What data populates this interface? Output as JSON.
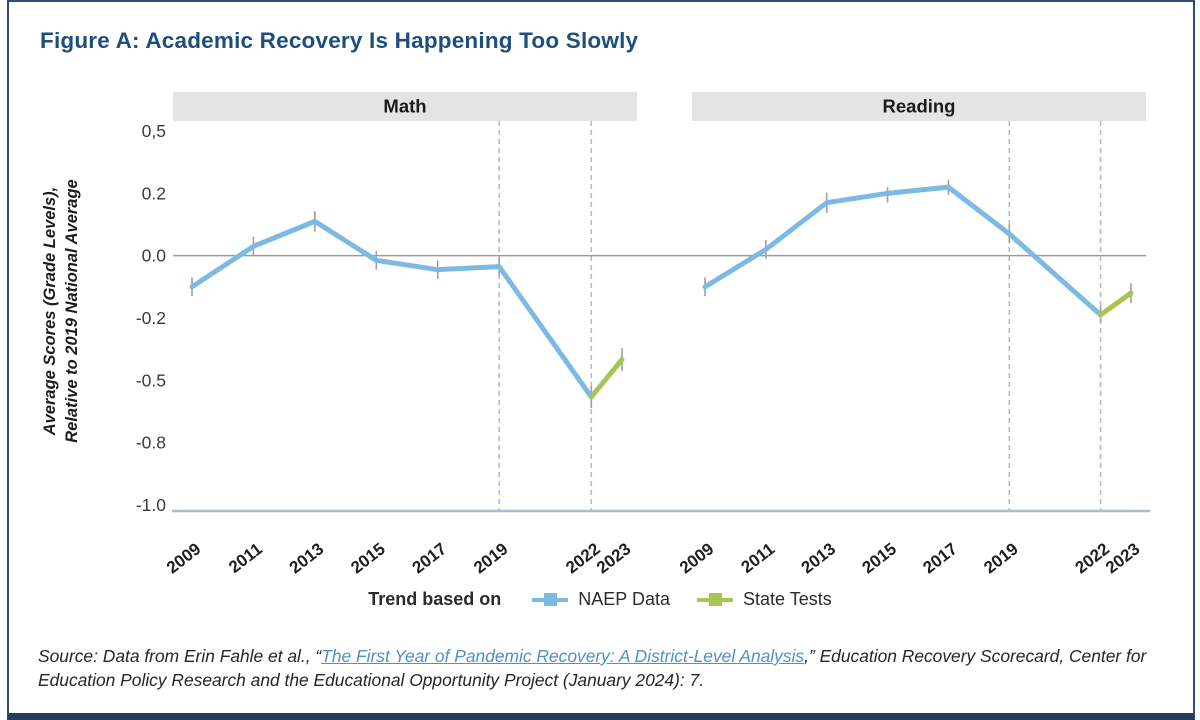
{
  "figure": {
    "title": "Figure A: Academic Recovery Is Happening Too Slowly",
    "source": {
      "prefix": "Source: Data from Erin Fahle et al., “",
      "link_text": "The First Year of Pandemic Recovery: A District-Level Analysis",
      "suffix": ",” Education Recovery Scorecard, Center for Education Policy Research and the Educational Opportunity Project (January 2024): 7."
    }
  },
  "legend": {
    "intro_label": "Trend based on",
    "items": [
      {
        "label": "NAEP Data",
        "color": "#7cbae3"
      },
      {
        "label": "State Tests",
        "color": "#a6c554"
      }
    ]
  },
  "chart_data": {
    "type": "line",
    "title": "Figure A: Academic Recovery Is Happening Too Slowly",
    "ylabel": "Average Scores (Grade Levels), Relative to 2019 National Average",
    "y_axis": {
      "label_line1": "Average Scores (Grade Levels),",
      "label_line2": "Relative to 2019 National Average",
      "tick_labels": [
        "0,5",
        "0.2",
        "0.0",
        "-0.2",
        "-0.5",
        "-0.8",
        "-1.0"
      ],
      "tick_values": [
        0.5,
        0.2,
        0.0,
        -0.2,
        -0.5,
        -0.8,
        -1.0
      ]
    },
    "x_tick_labels": [
      "2009",
      "2011",
      "2013",
      "2015",
      "2017",
      "2019",
      "2022",
      "2023"
    ],
    "dashed_years": [
      2019,
      2022
    ],
    "colors": {
      "naep": "#7cbae3",
      "state": "#a6c554",
      "zero_line": "#9c9c9c",
      "axis_line": "#a4bdd4",
      "error_bar": "#9f9f9f",
      "dashed_line": "#bbbbbb",
      "band_bg": "#e4e4e4"
    },
    "panels": [
      {
        "title": "Math",
        "naep": {
          "years": [
            2009,
            2011,
            2013,
            2015,
            2017,
            2019,
            2022
          ],
          "values": [
            -0.1,
            0.03,
            0.11,
            -0.015,
            -0.045,
            -0.035,
            -0.58
          ],
          "errors": [
            0.03,
            0.03,
            0.033,
            0.03,
            0.03,
            0.03,
            0.053
          ]
        },
        "state": {
          "years": [
            2022,
            2023
          ],
          "values": [
            -0.58,
            -0.4
          ],
          "errors": [
            null,
            0.055
          ]
        }
      },
      {
        "title": "Reading",
        "naep": {
          "years": [
            2009,
            2011,
            2013,
            2015,
            2017,
            2019,
            2022
          ],
          "values": [
            -0.1,
            0.02,
            0.17,
            0.2,
            0.23,
            0.07,
            -0.19
          ],
          "errors": [
            0.03,
            0.03,
            0.033,
            0.03,
            0.035,
            0.03,
            0.03
          ]
        },
        "state": {
          "years": [
            2022,
            2023
          ],
          "values": [
            -0.19,
            -0.12
          ],
          "errors": [
            null,
            0.032
          ]
        }
      }
    ]
  }
}
